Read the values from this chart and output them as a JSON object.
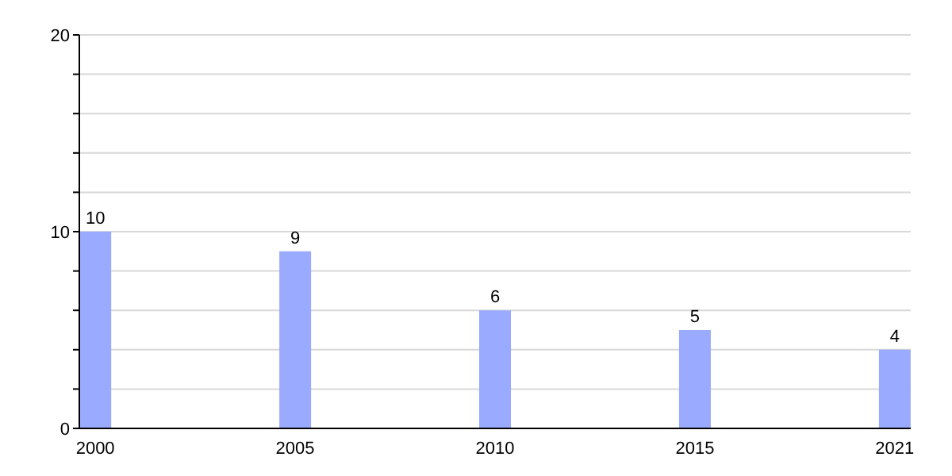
{
  "chart_data": {
    "type": "bar",
    "categories": [
      "2000",
      "2005",
      "2010",
      "2015",
      "2021"
    ],
    "values": [
      10,
      9,
      6,
      5,
      4
    ],
    "color": "#99aaff",
    "ylim": [
      0,
      20
    ],
    "yticks": [
      0,
      {
        "value": 2,
        "label": null
      },
      {
        "value": 4,
        "label": null
      },
      {
        "value": 6,
        "label": null
      },
      {
        "value": 8,
        "label": null
      },
      10,
      {
        "value": 12,
        "label": null
      },
      {
        "value": 14,
        "label": null
      },
      {
        "value": 16,
        "label": null
      },
      {
        "value": 18,
        "label": null
      },
      20
    ],
    "grid": "y",
    "data_labels": true
  }
}
